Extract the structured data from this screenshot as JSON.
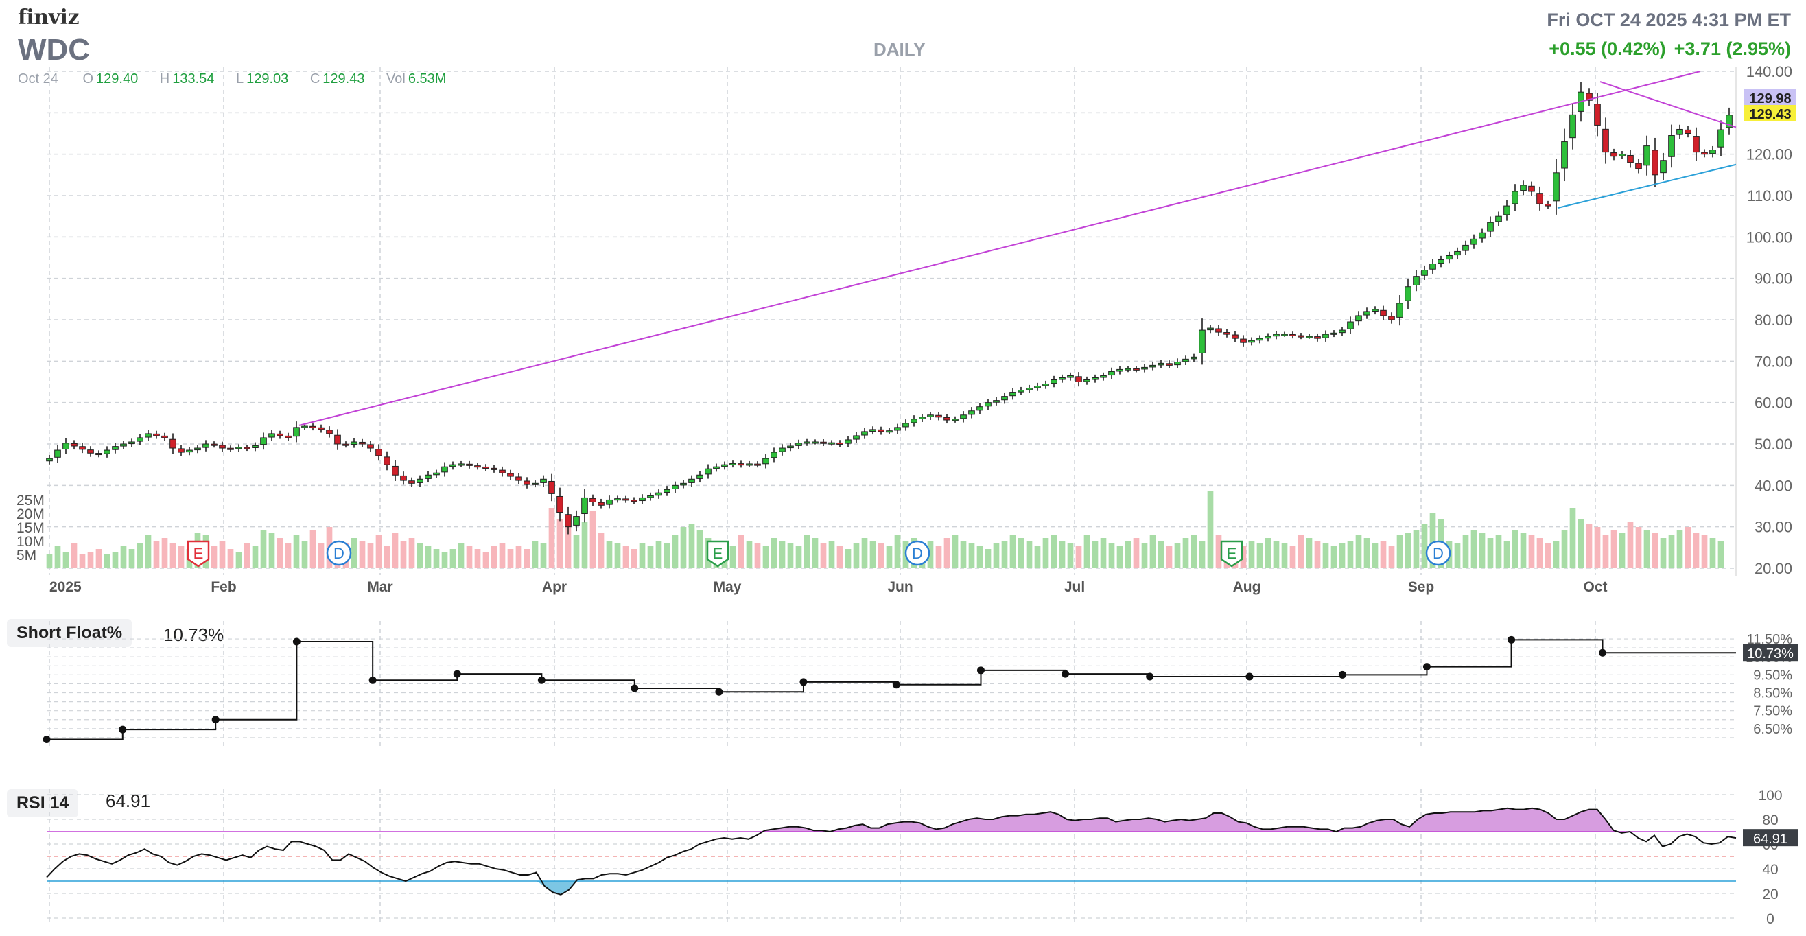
{
  "header": {
    "logo": "finviz",
    "ticker": "WDC",
    "period": "DAILY",
    "datetime": "Fri OCT 24 2025 4:31 PM ET",
    "change_today": "+0.55 (0.42%)",
    "change_after": "+3.71 (2.95%)",
    "ohlc": {
      "date": "Oct 24",
      "open_label": "O",
      "open": "129.40",
      "high_label": "H",
      "high": "133.54",
      "low_label": "L",
      "low": "129.03",
      "close_label": "C",
      "close": "129.43",
      "vol_label": "Vol",
      "vol": "6.53M"
    }
  },
  "colors": {
    "up": "#2dbf3a",
    "down": "#d0202a",
    "vol_up": "#a8dca6",
    "vol_down": "#f7b6bb",
    "trendline": "#c242d6",
    "support": "#2aa0d8",
    "grid": "#cfd3d8",
    "rsi_fill": "#d79de0",
    "rsi_oversold_fill": "#7cc6e4",
    "earnings": "#e0303a",
    "earnings2": "#2a9d4a",
    "dividend": "#2a7fd4"
  },
  "chart_data": [
    {
      "type": "candlestick",
      "title": "WDC",
      "x_ticks": [
        "2025",
        "Feb",
        "Mar",
        "Apr",
        "May",
        "Jun",
        "Jul",
        "Aug",
        "Sep",
        "Oct"
      ],
      "y_ticks": [
        "140.00",
        "130.00",
        "120.00",
        "110.00",
        "100.00",
        "90.00",
        "80.00",
        "70.00",
        "60.00",
        "50.00",
        "40.00",
        "30.00",
        "20.00"
      ],
      "ylim": [
        20,
        140
      ],
      "price_labels": [
        "129.98",
        "129.43"
      ],
      "volume_ticks": [
        "25M",
        "20M",
        "15M",
        "10M",
        "5M"
      ],
      "event_markers": [
        "E",
        "D",
        "E",
        "D",
        "E",
        "D"
      ],
      "closes": [
        46.5,
        48.5,
        50.2,
        49.5,
        48.7,
        47.8,
        47.5,
        48.5,
        49.4,
        50.0,
        50.5,
        51.5,
        52.5,
        52.0,
        51.5,
        49.0,
        48.0,
        48.5,
        49.0,
        50.0,
        49.8,
        49.0,
        48.8,
        49.2,
        49.0,
        49.6,
        51.5,
        52.5,
        52.0,
        51.5,
        54.0,
        54.3,
        54.0,
        53.5,
        52.5,
        50.0,
        49.8,
        50.5,
        50.0,
        49.0,
        47.2,
        45.0,
        42.5,
        41.2,
        40.5,
        41.5,
        42.5,
        43.0,
        44.5,
        45.0,
        45.2,
        44.8,
        44.5,
        44.2,
        43.8,
        43.0,
        42.2,
        41.2,
        40.2,
        40.5,
        41.5,
        38.0,
        33.5,
        30.0,
        32.5,
        37.0,
        36.0,
        35.2,
        36.5,
        36.8,
        36.5,
        36.2,
        37.0,
        37.5,
        38.2,
        39.0,
        40.0,
        40.5,
        41.5,
        42.5,
        44.0,
        44.5,
        45.0,
        45.3,
        45.0,
        45.2,
        45.0,
        46.5,
        48.0,
        49.0,
        49.5,
        50.2,
        50.5,
        50.5,
        50.2,
        50.3,
        50.0,
        51.0,
        52.0,
        53.0,
        53.5,
        53.0,
        53.2,
        54.0,
        55.0,
        56.0,
        56.5,
        57.0,
        56.5,
        55.8,
        56.0,
        57.0,
        58.0,
        59.0,
        60.0,
        60.5,
        61.5,
        62.5,
        63.0,
        63.5,
        64.0,
        64.5,
        65.5,
        66.0,
        66.5,
        65.0,
        65.5,
        66.0,
        66.5,
        67.5,
        68.0,
        68.2,
        68.0,
        68.5,
        69.0,
        69.5,
        69.0,
        69.8,
        70.5,
        71.0,
        77.5,
        78.0,
        77.0,
        76.5,
        75.5,
        74.5,
        75.0,
        75.5,
        76.0,
        76.5,
        76.5,
        76.2,
        76.0,
        76.0,
        75.5,
        76.5,
        76.8,
        77.5,
        79.5,
        81.0,
        82.0,
        82.5,
        81.0,
        80.0,
        84.0,
        88.0,
        90.5,
        92.0,
        93.5,
        94.5,
        95.5,
        96.5,
        98.0,
        99.5,
        101.0,
        103.5,
        105.0,
        107.5,
        111.0,
        112.5,
        111.0,
        108.0,
        107.5,
        115.5,
        123.0,
        129.5,
        135.0,
        133.0,
        127.0,
        120.5,
        119.5,
        120.0,
        118.0,
        116.5,
        122.0,
        115.0,
        118.5,
        124.5,
        126.0,
        125.0,
        120.5,
        120.0,
        121.0,
        125.9,
        129.43
      ],
      "volume_m": [
        5,
        8,
        6,
        9,
        5,
        6,
        7,
        5,
        6,
        8,
        7,
        9,
        12,
        10,
        11,
        9,
        8,
        7,
        13,
        12,
        8,
        10,
        7,
        6,
        9,
        8,
        14,
        13,
        11,
        9,
        12,
        10,
        14,
        9,
        15,
        10,
        9,
        11,
        10,
        9,
        12,
        8,
        13,
        10,
        11,
        9,
        8,
        7,
        6,
        7,
        9,
        8,
        7,
        6,
        8,
        9,
        7,
        8,
        7,
        10,
        9,
        22,
        18,
        15,
        12,
        17,
        21,
        13,
        10,
        9,
        8,
        7,
        9,
        8,
        10,
        9,
        12,
        15,
        16,
        14,
        11,
        9,
        10,
        8,
        12,
        10,
        9,
        8,
        11,
        10,
        9,
        8,
        12,
        11,
        9,
        10,
        8,
        7,
        9,
        11,
        10,
        9,
        8,
        12,
        10,
        11,
        9,
        10,
        8,
        11,
        12,
        10,
        9,
        8,
        7,
        9,
        10,
        12,
        11,
        10,
        8,
        11,
        12,
        10,
        9,
        8,
        12,
        10,
        11,
        9,
        8,
        10,
        11,
        9,
        12,
        10,
        8,
        9,
        11,
        12,
        10,
        28,
        12,
        10,
        9,
        8,
        10,
        9,
        11,
        10,
        9,
        8,
        12,
        11,
        10,
        9,
        8,
        9,
        10,
        12,
        11,
        9,
        10,
        8,
        12,
        13,
        14,
        16,
        20,
        18,
        10,
        9,
        12,
        14,
        13,
        11,
        12,
        10,
        14,
        13,
        12,
        11,
        9,
        10,
        14,
        22,
        18,
        16,
        15,
        12,
        14,
        13,
        17,
        15,
        14,
        13,
        11,
        12,
        14,
        15,
        13,
        12,
        11,
        10
      ],
      "trendline": [
        [
          54.5,
          "Feb 14"
        ],
        [
          140.0,
          "Oct 20"
        ]
      ]
    },
    {
      "type": "line",
      "title": "Short Float%",
      "current": "10.73%",
      "y_ticks": [
        "11.50%",
        "10.50%",
        "9.50%",
        "8.50%",
        "7.50%",
        "6.50%"
      ],
      "current_label": "10.73%",
      "ylim": [
        5.5,
        12.0
      ],
      "points": [
        [
          0,
          5.9
        ],
        [
          0.045,
          6.45
        ],
        [
          0.1,
          7.0
        ],
        [
          0.148,
          11.35
        ],
        [
          0.193,
          9.2
        ],
        [
          0.243,
          9.55
        ],
        [
          0.293,
          9.2
        ],
        [
          0.348,
          8.75
        ],
        [
          0.398,
          8.55
        ],
        [
          0.448,
          9.1
        ],
        [
          0.503,
          8.95
        ],
        [
          0.553,
          9.75
        ],
        [
          0.603,
          9.55
        ],
        [
          0.653,
          9.4
        ],
        [
          0.712,
          9.4
        ],
        [
          0.767,
          9.5
        ],
        [
          0.817,
          9.95
        ],
        [
          0.867,
          11.45
        ],
        [
          0.921,
          10.73
        ],
        [
          1.0,
          10.73
        ]
      ]
    },
    {
      "type": "line",
      "title": "RSI 14",
      "current": "64.91",
      "y_ticks": [
        "100",
        "80",
        "60",
        "40",
        "20",
        "0"
      ],
      "current_label": "64.91",
      "ylim": [
        0,
        100
      ],
      "overbought": 70,
      "oversold": 30,
      "values": [
        33,
        40,
        46,
        50,
        52,
        51,
        48,
        46,
        44,
        47,
        51,
        53,
        56,
        52,
        50,
        45,
        43,
        46,
        50,
        52,
        51,
        49,
        47,
        49,
        51,
        49,
        55,
        58,
        56,
        55,
        62,
        62,
        60,
        58,
        55,
        47,
        47,
        52,
        49,
        46,
        41,
        37,
        34,
        32,
        30,
        33,
        36,
        38,
        42,
        45,
        46,
        45,
        44,
        44,
        42,
        40,
        39,
        37,
        35,
        35,
        37,
        26,
        21,
        19,
        23,
        31,
        32,
        32,
        35,
        36,
        36,
        35,
        37,
        39,
        42,
        45,
        49,
        51,
        54,
        56,
        60,
        62,
        64,
        65,
        64,
        65,
        64,
        67,
        71,
        72,
        73,
        74,
        74,
        73,
        71,
        71,
        70,
        72,
        73,
        75,
        76,
        73,
        73,
        76,
        77,
        78,
        78,
        77,
        74,
        72,
        73,
        76,
        78,
        80,
        81,
        80,
        80,
        82,
        83,
        83,
        84,
        84,
        85,
        86,
        84,
        80,
        79,
        80,
        80,
        81,
        81,
        78,
        79,
        80,
        80,
        81,
        80,
        78,
        79,
        80,
        79,
        80,
        81,
        85,
        85,
        82,
        78,
        77,
        74,
        72,
        72,
        73,
        74,
        74,
        74,
        73,
        72,
        72,
        70,
        73,
        73,
        74,
        77,
        79,
        80,
        80,
        76,
        74,
        80,
        84,
        85,
        85,
        86,
        86,
        86,
        86,
        87,
        87,
        88,
        89,
        88,
        88,
        89,
        88,
        85,
        80,
        80,
        83,
        86,
        88,
        88,
        80,
        71,
        69,
        70,
        65,
        62,
        67,
        58,
        60,
        66,
        68,
        66,
        61,
        60,
        61,
        66,
        64.91
      ]
    }
  ]
}
